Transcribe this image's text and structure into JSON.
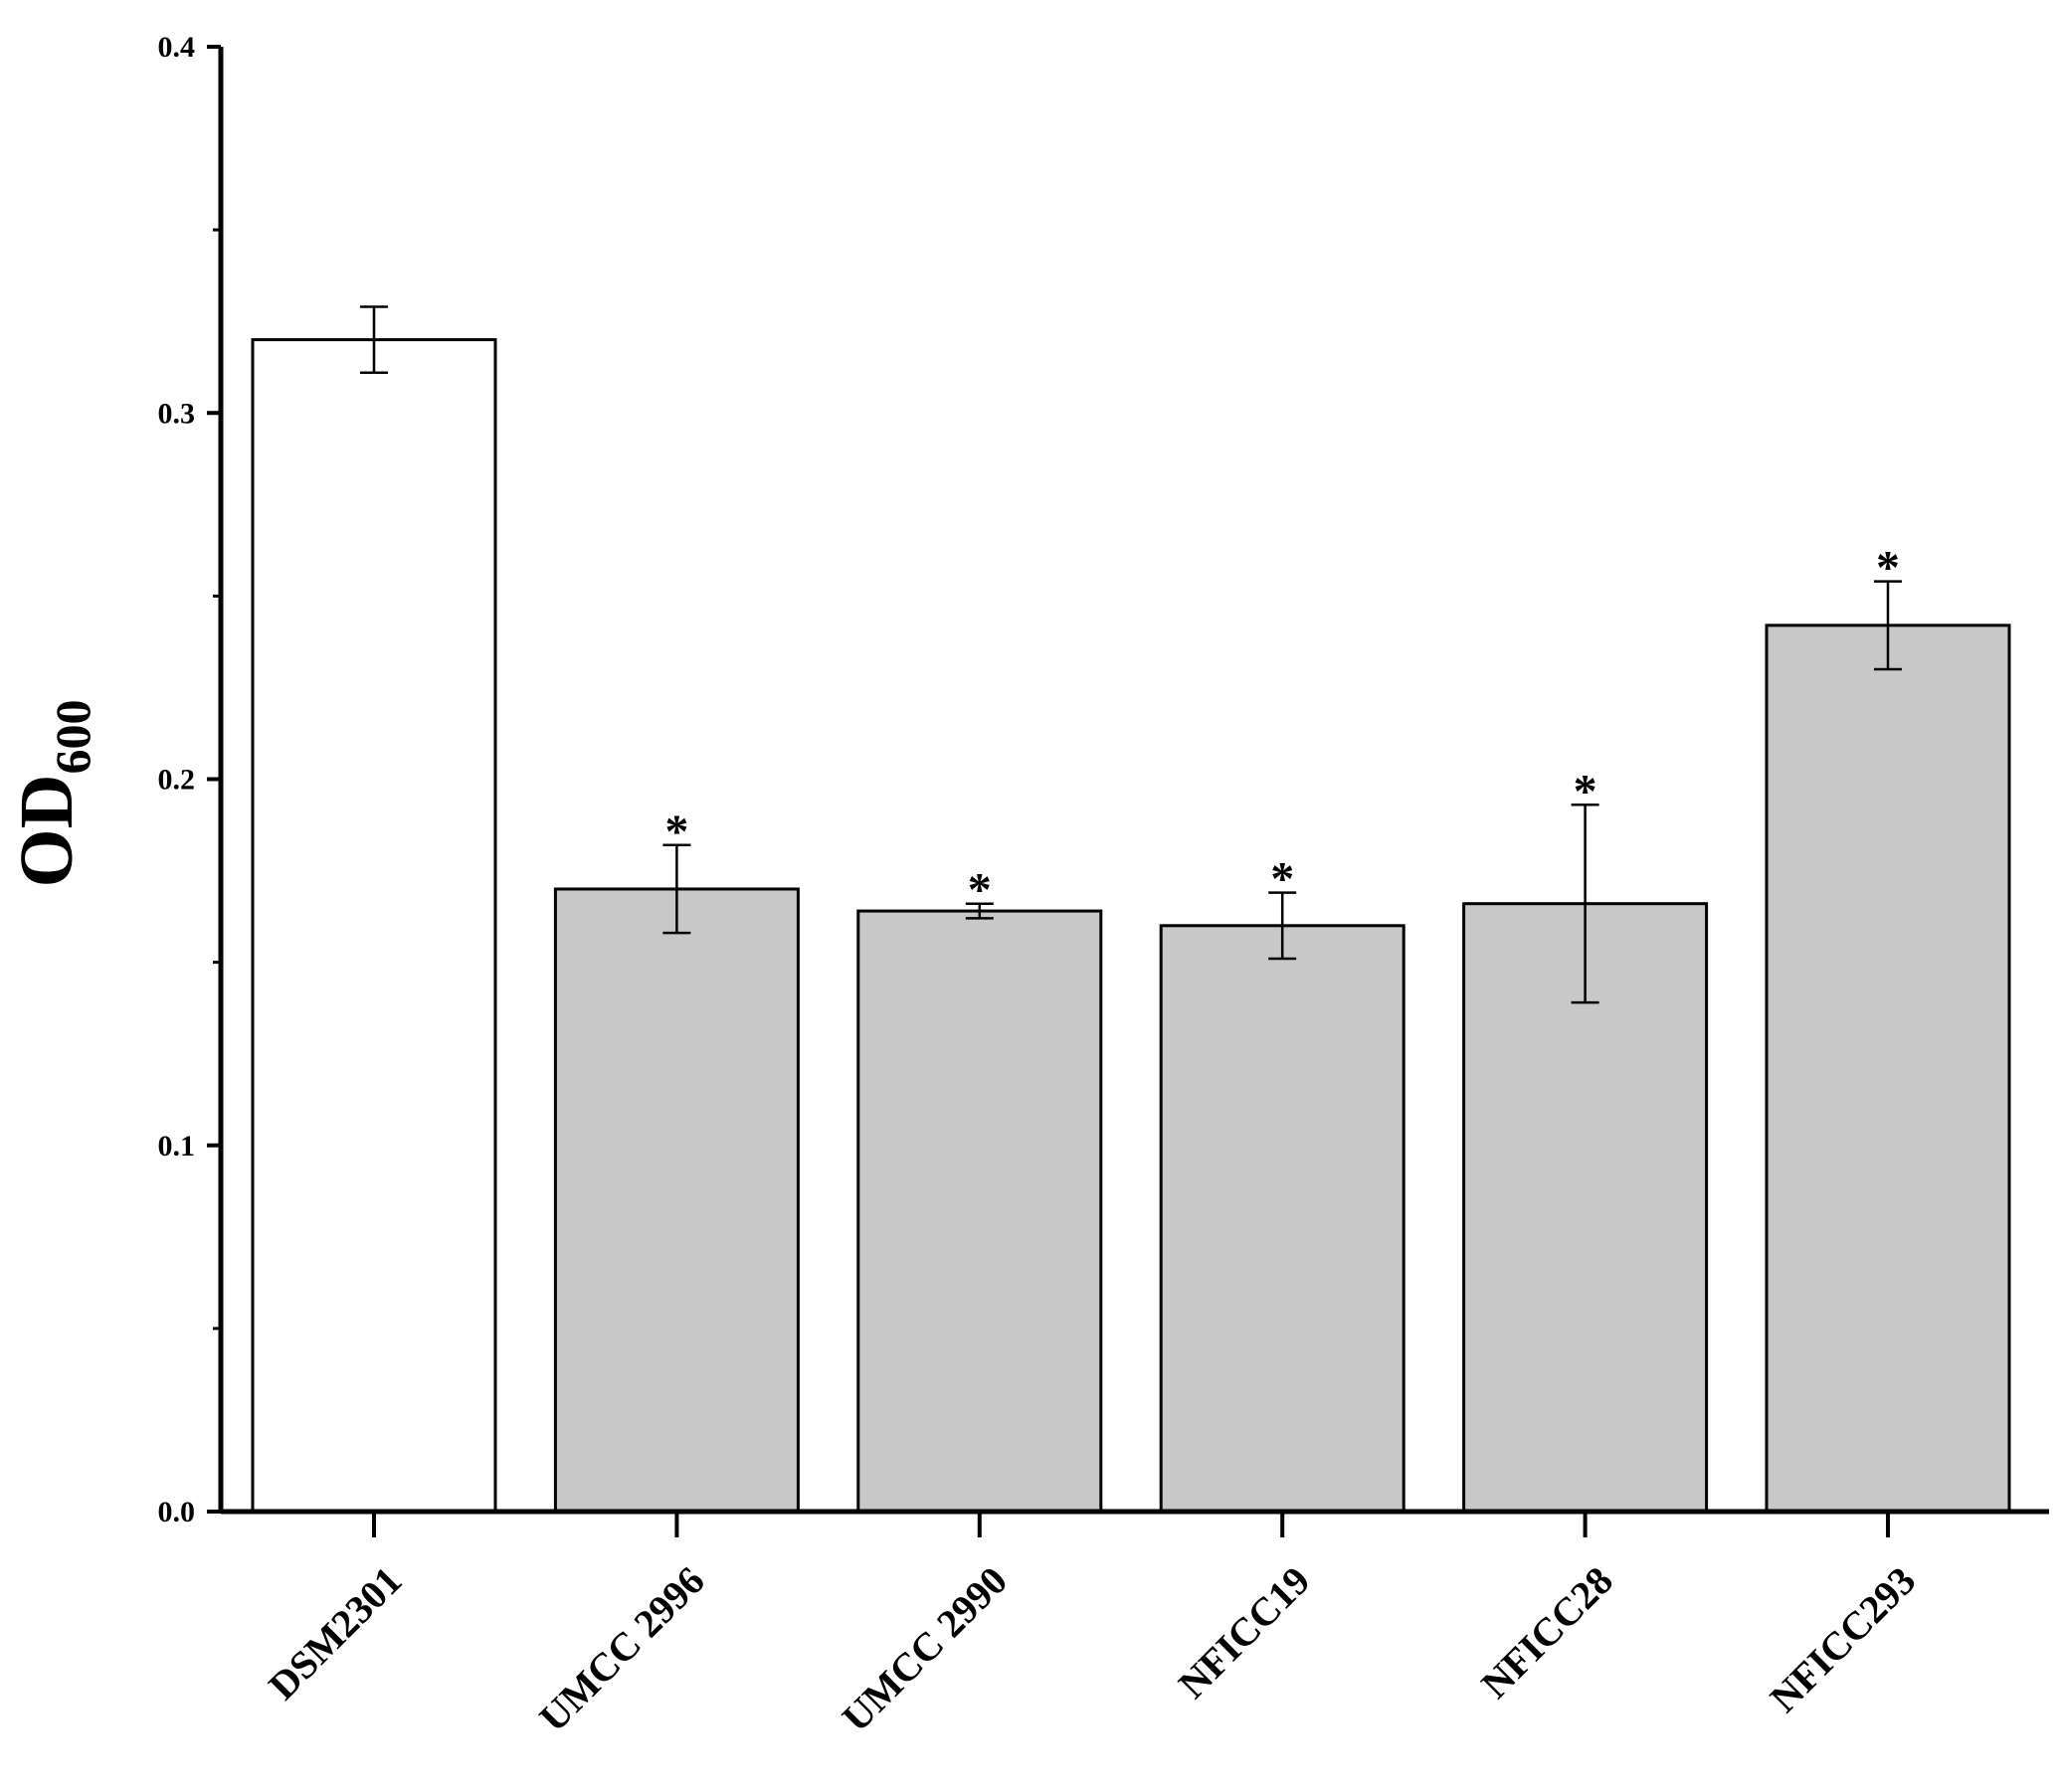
{
  "chart_data": {
    "type": "bar",
    "categories": [
      "DSM2301",
      "UMCC 2996",
      "UMCC 2990",
      "NFICC19",
      "NFICC28",
      "NFICC293"
    ],
    "values": [
      0.32,
      0.17,
      0.164,
      0.16,
      0.166,
      0.242
    ],
    "errors": [
      0.009,
      0.012,
      0.002,
      0.009,
      0.027,
      0.012
    ],
    "significance": [
      "",
      "*",
      "*",
      "*",
      "*",
      "*"
    ],
    "bar_colors": [
      "#ffffff",
      "#c8c8c8",
      "#c8c8c8",
      "#c8c8c8",
      "#c8c8c8",
      "#c8c8c8"
    ],
    "ylabel": "OD",
    "ylabel_subscript": "600",
    "ylim": [
      0.0,
      0.4
    ],
    "yticks": [
      0.0,
      0.1,
      0.2,
      0.3,
      0.4
    ],
    "ytick_labels": [
      "0.0",
      "0.1",
      "0.2",
      "0.3",
      "0.4"
    ],
    "grid": false
  }
}
